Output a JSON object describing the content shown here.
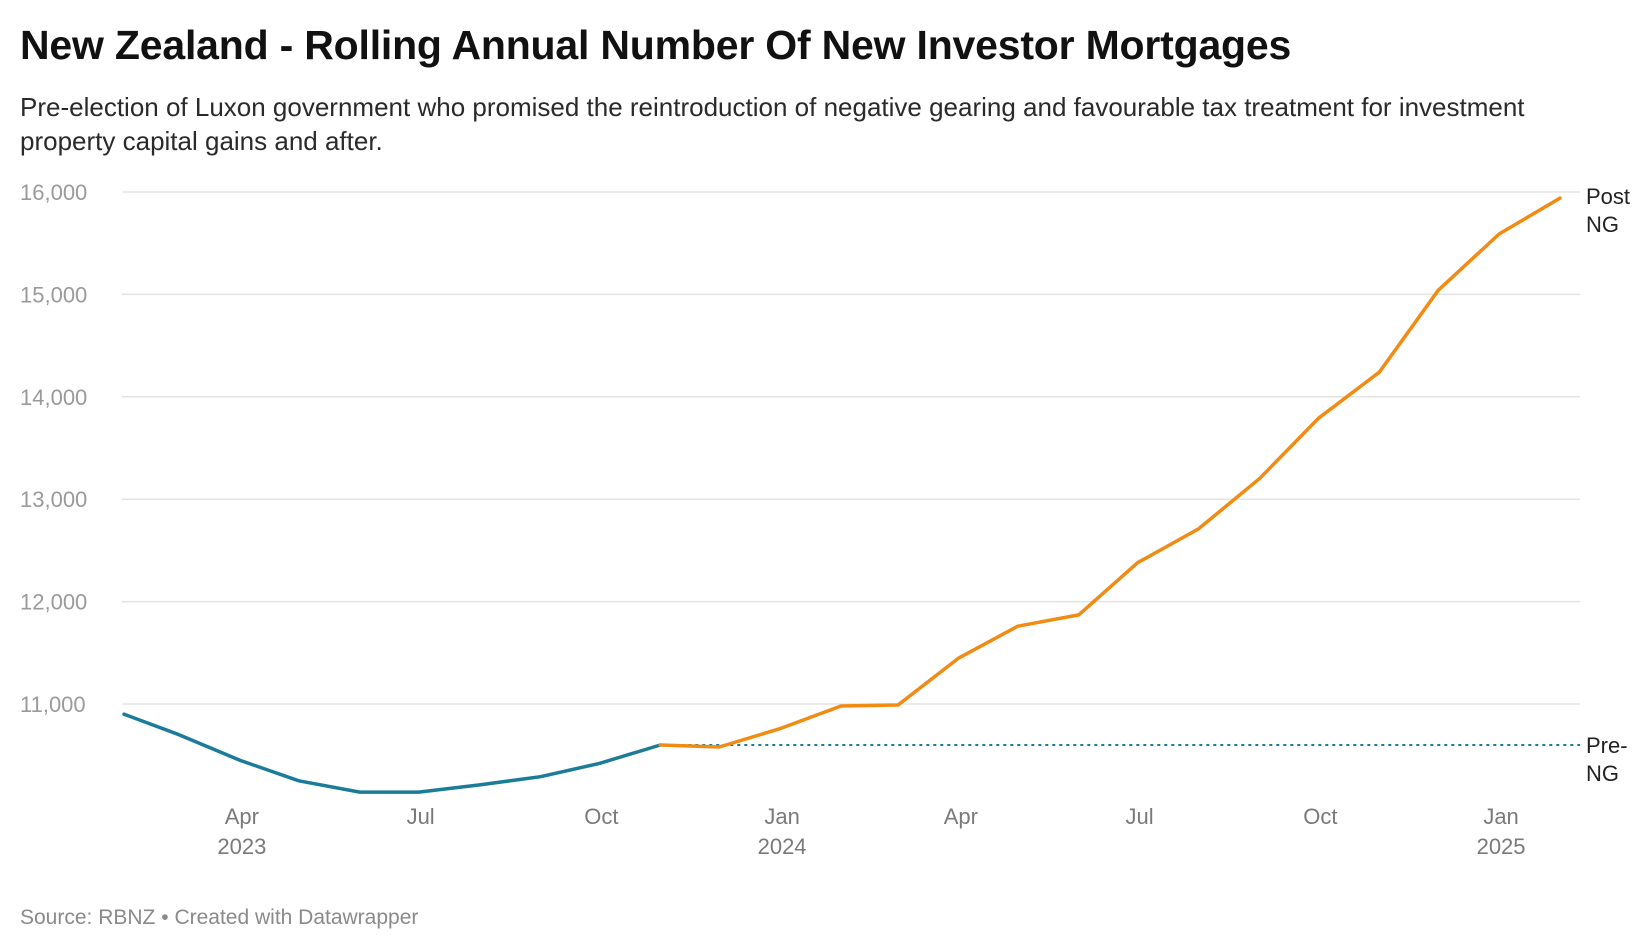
{
  "header": {
    "title": "New Zealand - Rolling Annual Number Of New Investor Mortgages",
    "subtitle": "Pre-election of Luxon government who promised the reintroduction of negative gearing and favourable tax treatment for investment property capital gains and after."
  },
  "footer": {
    "source_label": "Source:",
    "source": "RBNZ",
    "separator": "•",
    "credit": "Created with Datawrapper"
  },
  "colors": {
    "pre": "#1b7c99",
    "post": "#f18b13",
    "grid": "#e3e3e3"
  },
  "chart_data": {
    "type": "line",
    "title": "New Zealand - Rolling Annual Number Of New Investor Mortgages",
    "ylim": [
      10000,
      16000
    ],
    "yticks": [
      {
        "value": 11000,
        "label": "11,000"
      },
      {
        "value": 12000,
        "label": "12,000"
      },
      {
        "value": 13000,
        "label": "13,000"
      },
      {
        "value": 14000,
        "label": "14,000"
      },
      {
        "value": 15000,
        "label": "15,000"
      },
      {
        "value": 16000,
        "label": "16,000"
      }
    ],
    "xticks": [
      {
        "date": "2023-04-01",
        "label": "Apr",
        "year": "2023"
      },
      {
        "date": "2023-07-01",
        "label": "Jul",
        "year": ""
      },
      {
        "date": "2023-10-01",
        "label": "Oct",
        "year": ""
      },
      {
        "date": "2024-01-01",
        "label": "Jan",
        "year": "2024"
      },
      {
        "date": "2024-04-01",
        "label": "Apr",
        "year": ""
      },
      {
        "date": "2024-07-01",
        "label": "Jul",
        "year": ""
      },
      {
        "date": "2024-10-01",
        "label": "Oct",
        "year": ""
      },
      {
        "date": "2025-01-01",
        "label": "Jan",
        "year": "2025"
      }
    ],
    "grid": true,
    "series": [
      {
        "name": "Pre-NG",
        "label_lines": [
          "Pre-",
          "NG"
        ],
        "color": "#1b7c99",
        "points": [
          {
            "x": "2023-01-31",
            "y": 10900
          },
          {
            "x": "2023-02-28",
            "y": 10700
          },
          {
            "x": "2023-03-31",
            "y": 10450
          },
          {
            "x": "2023-04-30",
            "y": 10250
          },
          {
            "x": "2023-05-31",
            "y": 10140
          },
          {
            "x": "2023-06-30",
            "y": 10140
          },
          {
            "x": "2023-07-31",
            "y": 10210
          },
          {
            "x": "2023-08-31",
            "y": 10290
          },
          {
            "x": "2023-09-30",
            "y": 10420
          },
          {
            "x": "2023-10-31",
            "y": 10600
          }
        ],
        "reference_value": 10600,
        "reference_end": "2025-01-31"
      },
      {
        "name": "Post NG",
        "label_lines": [
          "Post",
          "NG"
        ],
        "color": "#f18b13",
        "points": [
          {
            "x": "2023-10-31",
            "y": 10600
          },
          {
            "x": "2023-11-30",
            "y": 10580
          },
          {
            "x": "2023-12-31",
            "y": 10760
          },
          {
            "x": "2024-01-31",
            "y": 10980
          },
          {
            "x": "2024-02-29",
            "y": 10990
          },
          {
            "x": "2024-03-31",
            "y": 11450
          },
          {
            "x": "2024-04-30",
            "y": 11760
          },
          {
            "x": "2024-05-31",
            "y": 11870
          },
          {
            "x": "2024-06-30",
            "y": 12380
          },
          {
            "x": "2024-07-31",
            "y": 12710
          },
          {
            "x": "2024-08-31",
            "y": 13200
          },
          {
            "x": "2024-09-30",
            "y": 13790
          },
          {
            "x": "2024-10-31",
            "y": 14240
          },
          {
            "x": "2024-11-30",
            "y": 15040
          },
          {
            "x": "2024-12-31",
            "y": 15590
          },
          {
            "x": "2025-01-31",
            "y": 15940
          }
        ]
      }
    ]
  }
}
